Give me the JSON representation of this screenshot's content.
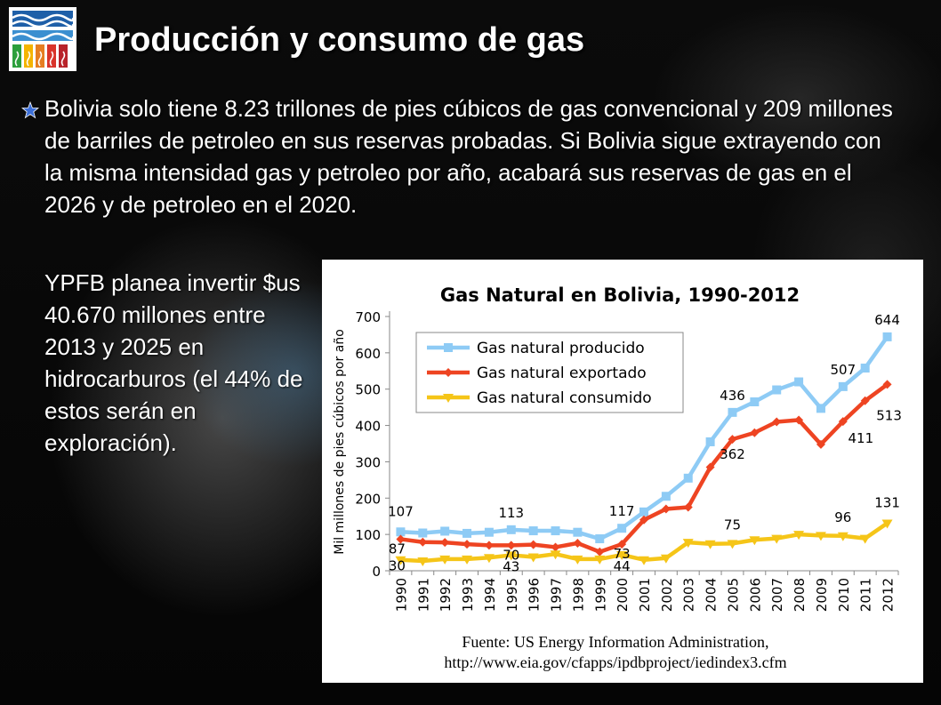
{
  "slide": {
    "title": "Producción y consumo de gas",
    "paragraph1": "Bolivia solo tiene 8.23 trillones de pies cúbicos de gas convencional y 209 millones de barriles de petroleo en sus reservas probadas. Si Bolivia sigue extrayendo con la misma intensidad  gas y petroleo por año, acabará sus reservas de gas en el 2026 y de petroleo en el 2020.",
    "paragraph2": " YPFB planea invertir $us 40.670 millones entre 2013 y 2025 en hidrocarburos (el 44% de estos serán en exploración).",
    "logo_icon": "gas-flame-logo-icon",
    "bullet_icon": "star-bullet-icon"
  },
  "chart_data": {
    "type": "line",
    "title": "Gas Natural en Bolivia, 1990-2012",
    "ylabel": "Mil millones de pies cúbicos por año",
    "xlabel": "",
    "ylim": [
      0,
      700
    ],
    "yticks": [
      0,
      100,
      200,
      300,
      400,
      500,
      600,
      700
    ],
    "grid": false,
    "legend_position": "top-left",
    "categories": [
      "1990",
      "1991",
      "1992",
      "1993",
      "1994",
      "1995",
      "1996",
      "1997",
      "1998",
      "1999",
      "2000",
      "2001",
      "2002",
      "2003",
      "2004",
      "2005",
      "2006",
      "2007",
      "2008",
      "2009",
      "2010",
      "2011",
      "2012"
    ],
    "series": [
      {
        "name": "Gas natural producido",
        "color": "#8ecbf5",
        "marker": "square",
        "values": [
          107,
          104,
          109,
          103,
          106,
          113,
          110,
          110,
          106,
          88,
          117,
          162,
          205,
          255,
          355,
          436,
          465,
          498,
          520,
          447,
          507,
          558,
          644
        ]
      },
      {
        "name": "Gas natural exportado",
        "color": "#ee4422",
        "marker": "diamond",
        "values": [
          87,
          79,
          78,
          73,
          70,
          70,
          72,
          65,
          76,
          52,
          73,
          140,
          170,
          175,
          285,
          362,
          380,
          410,
          415,
          348,
          411,
          468,
          513
        ]
      },
      {
        "name": "Gas natural consumido",
        "color": "#f5c518",
        "marker": "triangle-down",
        "values": [
          30,
          27,
          32,
          32,
          36,
          43,
          38,
          46,
          32,
          32,
          44,
          30,
          35,
          78,
          74,
          75,
          85,
          89,
          100,
          97,
          96,
          89,
          131
        ]
      }
    ],
    "data_labels": [
      {
        "text": "107",
        "series": 0,
        "index": 0
      },
      {
        "text": "113",
        "series": 0,
        "index": 5
      },
      {
        "text": "117",
        "series": 0,
        "index": 10
      },
      {
        "text": "436",
        "series": 0,
        "index": 15
      },
      {
        "text": "507",
        "series": 0,
        "index": 20
      },
      {
        "text": "644",
        "series": 0,
        "index": 22
      },
      {
        "text": "87",
        "series": 1,
        "index": 0
      },
      {
        "text": "70",
        "series": 1,
        "index": 5
      },
      {
        "text": "73",
        "series": 1,
        "index": 10
      },
      {
        "text": "362",
        "series": 1,
        "index": 15
      },
      {
        "text": "411",
        "series": 1,
        "index": 20
      },
      {
        "text": "513",
        "series": 1,
        "index": 22
      },
      {
        "text": "30",
        "series": 2,
        "index": 0
      },
      {
        "text": "43",
        "series": 2,
        "index": 5
      },
      {
        "text": "44",
        "series": 2,
        "index": 10
      },
      {
        "text": "75",
        "series": 2,
        "index": 15
      },
      {
        "text": "96",
        "series": 2,
        "index": 20
      },
      {
        "text": "131",
        "series": 2,
        "index": 22
      }
    ],
    "source_line1": "Fuente: US Energy Information Administration,",
    "source_line2": "http://www.eia.gov/cfapps/ipdbproject/iedindex3.cfm"
  }
}
